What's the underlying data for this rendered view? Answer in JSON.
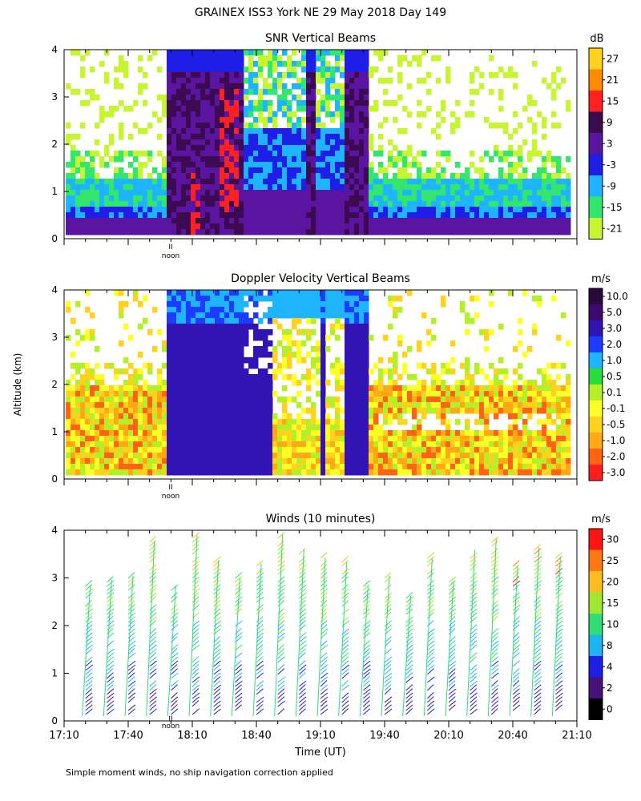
{
  "figure": {
    "title": "GRAINEX ISS3 York NE  29 May 2018 Day 149",
    "y_axis_label": "Altitude (km)",
    "x_axis_label": "Time (UT)",
    "noon_label": "noon",
    "noon_mark": "II",
    "footnote": "Simple moment winds, no ship navigation correction applied"
  },
  "chart_data": [
    {
      "type": "heatmap",
      "title": "SNR Vertical Beams",
      "unit": "dB",
      "ylim": [
        0,
        4
      ],
      "y_ticks": [
        "0",
        "1",
        "2",
        "3",
        "4"
      ],
      "colorbar_labels": [
        "27",
        "21",
        "15",
        "9",
        "3",
        "-3",
        "-9",
        "-15",
        "-21"
      ],
      "colorbar_colors": [
        "#ffd21e",
        "#ff8c00",
        "#ff2020",
        "#3c0a50",
        "#5a14a0",
        "#1e1ee6",
        "#1eb4ff",
        "#32e66e",
        "#c8f532"
      ],
      "legend": "right"
    },
    {
      "type": "heatmap",
      "title": "Doppler Velocity Vertical Beams",
      "unit": "m/s",
      "ylim": [
        0,
        4
      ],
      "y_ticks": [
        "0",
        "1",
        "2",
        "3",
        "4"
      ],
      "colorbar_labels": [
        "10.0",
        "5.0",
        "3.0",
        "2.0",
        "1.0",
        "0.5",
        "0.1",
        "-0.1",
        "-0.5",
        "-1.0",
        "-2.0",
        "-3.0"
      ],
      "colorbar_colors": [
        "#2a0a3c",
        "#3c0a6e",
        "#3214b4",
        "#1e3cff",
        "#1eb4ff",
        "#28dc3c",
        "#b4f028",
        "#ffff28",
        "#ffd21e",
        "#ffaa14",
        "#ff6414",
        "#ff1e1e"
      ],
      "legend": "right"
    },
    {
      "type": "scatter",
      "title": "Winds (10 minutes)",
      "unit": "m/s",
      "ylim": [
        0,
        4
      ],
      "y_ticks": [
        "0",
        "1",
        "2",
        "3",
        "4"
      ],
      "x_ticks": [
        "17:10",
        "17:40",
        "18:10",
        "18:40",
        "19:10",
        "19:40",
        "20:10",
        "20:40",
        "21:10"
      ],
      "colorbar_labels": [
        "30",
        "25",
        "20",
        "15",
        "10",
        "8",
        "4",
        "2",
        "0"
      ],
      "colorbar_colors": [
        "#ff1414",
        "#ff7814",
        "#ffbe1e",
        "#a0e632",
        "#32dc78",
        "#1eb4f0",
        "#1e1ee6",
        "#46127a",
        "#000000"
      ],
      "legend": "right"
    }
  ]
}
